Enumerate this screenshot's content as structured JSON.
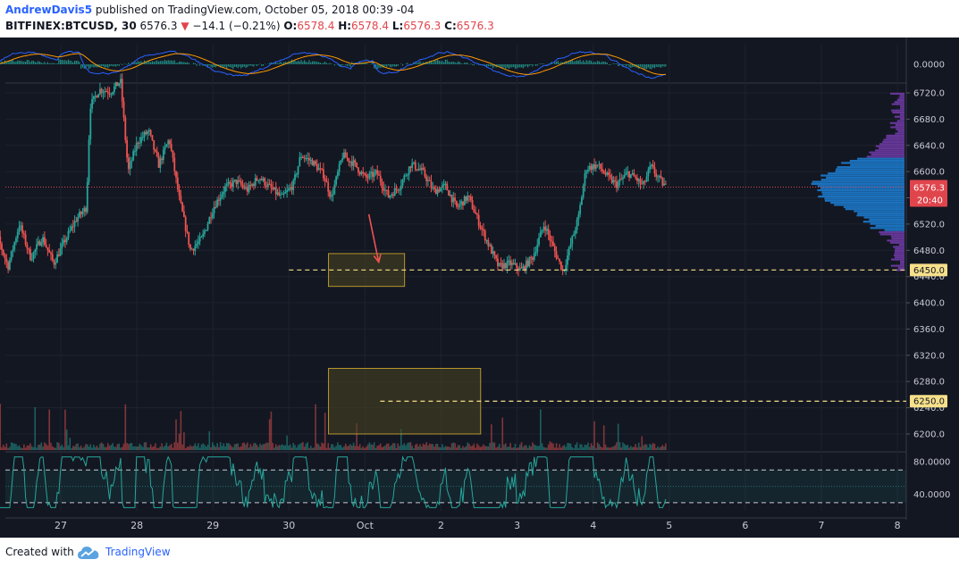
{
  "header": {
    "author": "AndrewDavis5",
    "published": "published on TradingView.com, October 05, 2018 00:39 -04",
    "symbol": "BITFINEX:BTCUSD, 30",
    "last": "6576.3",
    "change": "−14.1 (−0.21%)",
    "o_label": "O:",
    "o_value": "6578.4",
    "h_label": "H:",
    "h_value": "6578.4",
    "l_label": "L:",
    "l_value": "6576.3",
    "c_label": "C:",
    "c_value": "6576.3"
  },
  "footer": {
    "created_with": "Created with",
    "brand": "TradingView"
  },
  "colors": {
    "background": "#131722",
    "up": "#26a69a",
    "down": "#ef5350",
    "accent_red": "#e0454c",
    "zone_fill": "#4a4520",
    "zone_border": "#b8962e",
    "rsi": "#26a69a",
    "macd_blue": "#2962ff",
    "macd_orange": "#ff9800",
    "volume_profile_blue": "#1e88e5",
    "volume_profile_purple": "#7b3fb5"
  },
  "chart_data": {
    "type": "candlestick",
    "interval": "30",
    "x_ticks": [
      "27",
      "28",
      "29",
      "30",
      "Oct",
      "2",
      "3",
      "4",
      "5",
      "6",
      "7",
      "8"
    ],
    "price_axis": {
      "ticks": [
        "6720.0",
        "6680.0",
        "6640.0",
        "6600.0",
        "6560.0",
        "6520.0",
        "6480.0",
        "6440.0",
        "6400.0",
        "6360.0",
        "6320.0",
        "6280.0",
        "6240.0",
        "6200.0"
      ],
      "ylim": [
        6180,
        6730
      ]
    },
    "last_price_label": "6576.3",
    "countdown_label": "20:40",
    "key_levels": [
      {
        "label": "6450.0",
        "value": 6450
      },
      {
        "label": "6250.0",
        "value": 6250
      }
    ],
    "zones": [
      {
        "x_start": 4.52,
        "x_end": 5.52,
        "y_low": 6425,
        "y_high": 6475
      },
      {
        "x_start": 4.52,
        "x_end": 6.52,
        "y_low": 6200,
        "y_high": 6300
      }
    ],
    "arrow": {
      "x_from": 5.05,
      "y_from": 6535,
      "x_to": 5.18,
      "y_to": 6462
    },
    "price_path": [
      [
        0,
        6540
      ],
      [
        0.15,
        6505
      ],
      [
        0.3,
        6455
      ],
      [
        0.45,
        6520
      ],
      [
        0.6,
        6468
      ],
      [
        0.75,
        6500
      ],
      [
        0.9,
        6460
      ],
      [
        1.05,
        6495
      ],
      [
        1.2,
        6528
      ],
      [
        1.33,
        6545
      ],
      [
        1.38,
        6700
      ],
      [
        1.5,
        6725
      ],
      [
        1.65,
        6722
      ],
      [
        1.78,
        6738
      ],
      [
        1.88,
        6600
      ],
      [
        2.0,
        6645
      ],
      [
        2.15,
        6662
      ],
      [
        2.28,
        6610
      ],
      [
        2.42,
        6650
      ],
      [
        2.55,
        6560
      ],
      [
        2.7,
        6480
      ],
      [
        2.85,
        6498
      ],
      [
        3.0,
        6545
      ],
      [
        3.15,
        6575
      ],
      [
        3.3,
        6585
      ],
      [
        3.45,
        6572
      ],
      [
        3.6,
        6592
      ],
      [
        3.75,
        6575
      ],
      [
        3.9,
        6560
      ],
      [
        4.05,
        6580
      ],
      [
        4.15,
        6625
      ],
      [
        4.3,
        6615
      ],
      [
        4.45,
        6595
      ],
      [
        4.55,
        6560
      ],
      [
        4.7,
        6625
      ],
      [
        4.85,
        6612
      ],
      [
        5.0,
        6590
      ],
      [
        5.15,
        6598
      ],
      [
        5.3,
        6562
      ],
      [
        5.45,
        6578
      ],
      [
        5.6,
        6612
      ],
      [
        5.75,
        6600
      ],
      [
        5.9,
        6570
      ],
      [
        6.05,
        6578
      ],
      [
        6.2,
        6545
      ],
      [
        6.35,
        6562
      ],
      [
        6.5,
        6520
      ],
      [
        6.62,
        6488
      ],
      [
        6.75,
        6455
      ],
      [
        6.9,
        6460
      ],
      [
        7.05,
        6450
      ],
      [
        7.2,
        6470
      ],
      [
        7.35,
        6520
      ],
      [
        7.5,
        6475
      ],
      [
        7.6,
        6448
      ],
      [
        7.7,
        6490
      ],
      [
        7.8,
        6530
      ],
      [
        7.9,
        6605
      ],
      [
        8.05,
        6610
      ],
      [
        8.2,
        6590
      ],
      [
        8.3,
        6580
      ],
      [
        8.45,
        6598
      ],
      [
        8.55,
        6590
      ],
      [
        8.65,
        6578
      ],
      [
        8.75,
        6608
      ],
      [
        8.85,
        6590
      ],
      [
        8.95,
        6576
      ]
    ],
    "rsi": {
      "ticks": [
        "80.0000",
        "40.0000"
      ],
      "levels": [
        70,
        30
      ],
      "ylim": [
        20,
        90
      ]
    },
    "macd": {
      "ticks": [
        "0.0000"
      ]
    }
  }
}
